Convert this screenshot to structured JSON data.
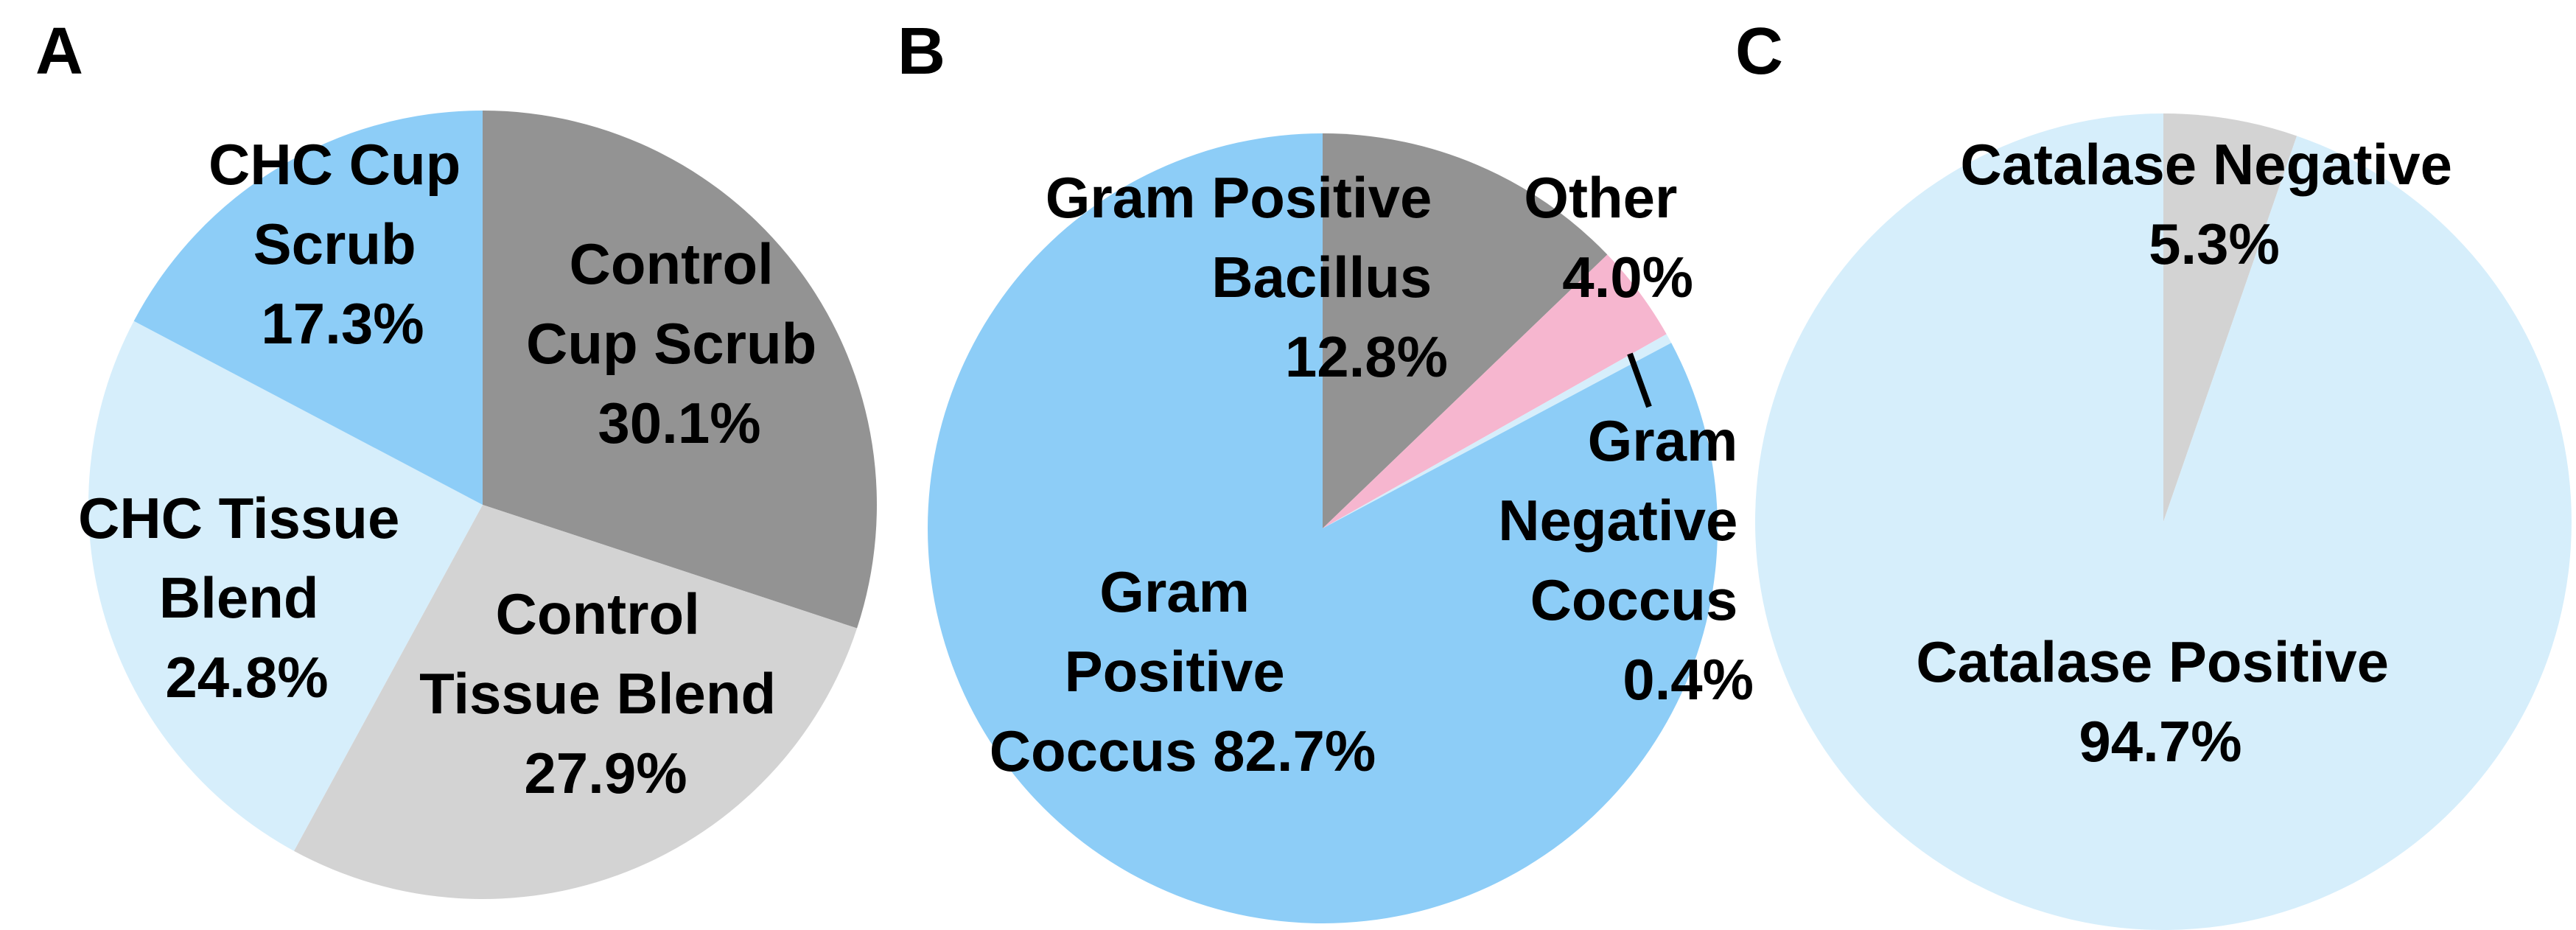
{
  "chart_data": [
    {
      "type": "pie",
      "panel_label": "A",
      "start_angle_deg": 0,
      "direction": "clockwise",
      "slices": [
        {
          "name": "Control Cup Scrub",
          "value": 30.1,
          "color": "#939393",
          "label_lines": [
            "Control",
            "Cup Scrub",
            "30.1%"
          ]
        },
        {
          "name": "Control Tissue Blend",
          "value": 27.9,
          "color": "#d3d3d3",
          "label_lines": [
            "Control",
            "Tissue Blend",
            "27.9%"
          ]
        },
        {
          "name": "CHC Tissue Blend",
          "value": 24.8,
          "color": "#d6eefb",
          "label_lines": [
            "CHC Tissue",
            "Blend",
            "24.8%"
          ]
        },
        {
          "name": "CHC Cup Scrub",
          "value": 17.3,
          "color": "#8dcdf7",
          "label_lines": [
            "CHC Cup",
            "Scrub",
            "17.3%"
          ]
        }
      ]
    },
    {
      "type": "pie",
      "panel_label": "B",
      "start_angle_deg": 0,
      "direction": "clockwise",
      "slices": [
        {
          "name": "Gram Positive Bacillus",
          "value": 12.8,
          "color": "#939393",
          "label_lines": [
            "Gram Positive",
            "Bacillus",
            "12.8%"
          ]
        },
        {
          "name": "Other",
          "value": 4.0,
          "color": "#f6b6cf",
          "label_lines": [
            "Other",
            "4.0%"
          ]
        },
        {
          "name": "Gram Negative Coccus",
          "value": 0.4,
          "color": "#d6eefb",
          "label_lines": [
            "Gram",
            "Negative",
            "Coccus",
            "0.4%"
          ]
        },
        {
          "name": "Gram Positive Coccus",
          "value": 82.7,
          "color": "#8dcdf7",
          "label_lines": [
            "Gram",
            "Positive",
            "Coccus 82.7%"
          ]
        }
      ]
    },
    {
      "type": "pie",
      "panel_label": "C",
      "start_angle_deg": 0,
      "direction": "clockwise",
      "slices": [
        {
          "name": "Catalase Negative",
          "value": 5.3,
          "color": "#d3d3d3",
          "label_lines": [
            "Catalase Negative",
            "5.3%"
          ]
        },
        {
          "name": "Catalase Positive",
          "value": 94.7,
          "color": "#d6eefb",
          "label_lines": [
            "Catalase Positive",
            "94.7%"
          ]
        }
      ]
    }
  ]
}
